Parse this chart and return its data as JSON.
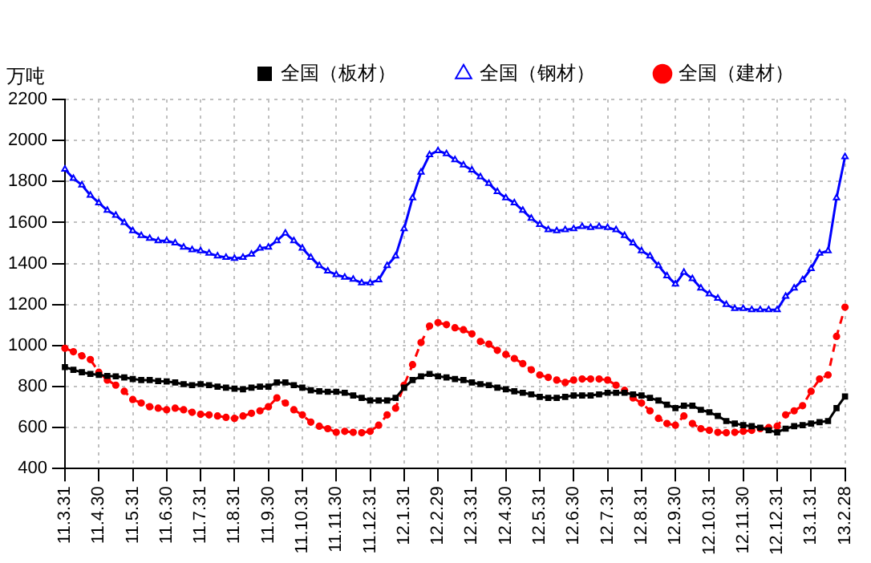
{
  "chart_data": {
    "type": "line",
    "ylabel": "万吨",
    "categories": [
      "11.3.31",
      null,
      null,
      null,
      "11.4.30",
      null,
      null,
      null,
      "11.5.31",
      null,
      null,
      null,
      "11.6.30",
      null,
      null,
      null,
      "11.7.31",
      null,
      null,
      null,
      "11.8.31",
      null,
      null,
      null,
      "11.9.30",
      null,
      null,
      null,
      "11.10.31",
      null,
      null,
      null,
      "11.11.30",
      null,
      null,
      null,
      "11.12.31",
      null,
      null,
      null,
      "12.1.31",
      null,
      null,
      null,
      "12.2.29",
      null,
      null,
      null,
      "12.3.31",
      null,
      null,
      null,
      "12.4.30",
      null,
      null,
      null,
      "12.5.31",
      null,
      null,
      null,
      "12.6.30",
      null,
      null,
      null,
      "12.7.31",
      null,
      null,
      null,
      "12.8.31",
      null,
      null,
      null,
      "12.9.30",
      null,
      null,
      null,
      "12.10.31",
      null,
      null,
      null,
      "12.11.30",
      null,
      null,
      null,
      "12.12.31",
      null,
      null,
      null,
      "13.1.31",
      null,
      null,
      null,
      "13.2.28"
    ],
    "series": [
      {
        "name": "全国（板材）",
        "color": "#000000",
        "marker": "square",
        "line_style": "solid",
        "values": [
          895,
          882,
          870,
          862,
          857,
          852,
          850,
          845,
          837,
          832,
          832,
          827,
          825,
          820,
          812,
          807,
          812,
          807,
          800,
          795,
          790,
          787,
          795,
          800,
          800,
          820,
          820,
          807,
          795,
          782,
          777,
          775,
          775,
          770,
          757,
          745,
          732,
          732,
          732,
          745,
          795,
          832,
          850,
          862,
          850,
          845,
          837,
          832,
          820,
          812,
          807,
          795,
          787,
          777,
          770,
          762,
          750,
          745,
          745,
          750,
          757,
          757,
          757,
          762,
          770,
          770,
          770,
          762,
          757,
          745,
          732,
          712,
          695,
          707,
          707,
          687,
          675,
          657,
          632,
          620,
          612,
          607,
          600,
          587,
          577,
          595,
          607,
          612,
          620,
          627,
          632,
          695,
          752
        ]
      },
      {
        "name": "全国（钢材）",
        "color": "#0000ff",
        "marker": "triangle",
        "line_style": "solid",
        "values": [
          1860,
          1815,
          1783,
          1733,
          1696,
          1659,
          1635,
          1600,
          1560,
          1536,
          1523,
          1511,
          1511,
          1500,
          1480,
          1467,
          1462,
          1450,
          1437,
          1430,
          1425,
          1430,
          1445,
          1475,
          1480,
          1511,
          1548,
          1511,
          1475,
          1430,
          1390,
          1363,
          1346,
          1333,
          1323,
          1306,
          1306,
          1320,
          1390,
          1437,
          1570,
          1720,
          1845,
          1930,
          1950,
          1935,
          1906,
          1880,
          1856,
          1823,
          1790,
          1750,
          1720,
          1696,
          1659,
          1620,
          1590,
          1565,
          1560,
          1565,
          1570,
          1580,
          1575,
          1580,
          1575,
          1565,
          1536,
          1500,
          1462,
          1437,
          1390,
          1340,
          1300,
          1357,
          1326,
          1280,
          1252,
          1230,
          1200,
          1180,
          1180,
          1175,
          1175,
          1175,
          1175,
          1240,
          1280,
          1320,
          1375,
          1450,
          1462,
          1720,
          1920
        ]
      },
      {
        "name": "全国（建材）",
        "color": "#ff0000",
        "marker": "circle",
        "line_style": "dashed",
        "values": [
          987,
          970,
          950,
          932,
          870,
          832,
          807,
          777,
          737,
          720,
          702,
          695,
          687,
          695,
          687,
          675,
          665,
          662,
          657,
          650,
          645,
          657,
          670,
          682,
          702,
          745,
          720,
          687,
          662,
          627,
          607,
          595,
          577,
          582,
          577,
          575,
          582,
          612,
          662,
          695,
          807,
          907,
          1015,
          1095,
          1112,
          1102,
          1087,
          1077,
          1057,
          1020,
          1007,
          977,
          957,
          937,
          912,
          882,
          857,
          845,
          832,
          820,
          832,
          837,
          837,
          837,
          832,
          807,
          782,
          745,
          720,
          682,
          645,
          620,
          612,
          657,
          620,
          595,
          587,
          577,
          575,
          577,
          582,
          587,
          595,
          600,
          607,
          662,
          682,
          707,
          777,
          837,
          857,
          1045,
          1187
        ]
      }
    ],
    "ylim": [
      400,
      2200
    ],
    "yticks": [
      400,
      600,
      800,
      1000,
      1200,
      1400,
      1600,
      1800,
      2000,
      2200
    ],
    "grid": true,
    "legend": "top"
  }
}
